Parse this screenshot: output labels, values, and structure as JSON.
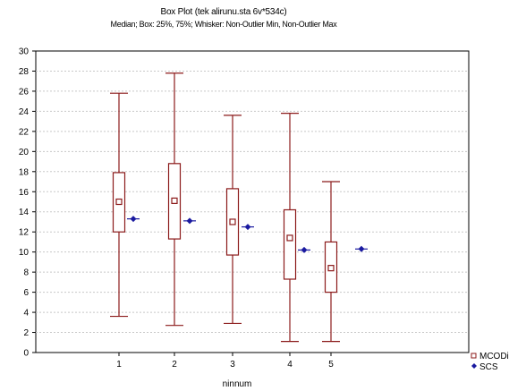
{
  "chart_data": {
    "type": "box",
    "title": "Box Plot (tek alirunu.sta 6v*534c)",
    "subtitle": "Median; Box: 25%, 75%; Whisker: Non-Outlier Min, Non-Outlier Max",
    "xlabel": "ninnum",
    "ylabel": "",
    "categories": [
      "1",
      "2",
      "3",
      "4",
      "5"
    ],
    "ylim": [
      0,
      30
    ],
    "yticks": [
      0,
      2,
      4,
      6,
      8,
      10,
      12,
      14,
      16,
      18,
      20,
      22,
      24,
      26,
      28,
      30
    ],
    "grid": true,
    "legend_position": "bottom-right",
    "series": [
      {
        "name": "MCODim",
        "kind": "box",
        "color": "#8b1a1a",
        "boxes": [
          {
            "min": 3.6,
            "q1": 12.0,
            "median": 15.0,
            "q3": 17.9,
            "max": 25.8
          },
          {
            "min": 2.7,
            "q1": 11.3,
            "median": 15.1,
            "q3": 18.8,
            "max": 27.8
          },
          {
            "min": 2.9,
            "q1": 9.7,
            "median": 13.0,
            "q3": 16.3,
            "max": 23.6
          },
          {
            "min": 1.1,
            "q1": 7.3,
            "median": 11.4,
            "q3": 14.2,
            "max": 23.8
          },
          {
            "min": 1.1,
            "q1": 6.0,
            "median": 8.4,
            "q3": 11.0,
            "max": 17.0
          }
        ]
      },
      {
        "name": "SCS",
        "kind": "point",
        "color": "#1a1aa0",
        "values": [
          13.3,
          13.1,
          12.5,
          10.2,
          10.3
        ]
      }
    ]
  }
}
